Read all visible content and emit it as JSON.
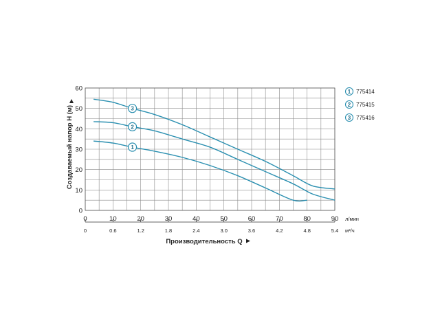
{
  "chart_data": {
    "type": "line",
    "title": "",
    "ylabel": "Создаваемый напор H (м)",
    "xlabel": "Производительность Q",
    "ylim": [
      0,
      60
    ],
    "xlim": [
      0,
      90
    ],
    "y_ticks": [
      0,
      10,
      20,
      30,
      40,
      50,
      60
    ],
    "x_ticks_primary": [
      0,
      10,
      20,
      30,
      40,
      50,
      60,
      70,
      80,
      90
    ],
    "x_unit_primary": "л/мин",
    "x_ticks_secondary": [
      "0",
      "0.6",
      "1.2",
      "1.8",
      "2.4",
      "3.0",
      "3.6",
      "4.2",
      "4.8",
      "5.4"
    ],
    "x_unit_secondary": "м³/ч",
    "grid": true,
    "legend_position": "right",
    "series": [
      {
        "name": "775414",
        "marker": "1",
        "color": "#2a8fb0",
        "x": [
          3,
          10,
          17,
          25,
          35,
          45,
          55,
          65,
          75,
          80
        ],
        "y": [
          34,
          33,
          31,
          29,
          26,
          22,
          17,
          11,
          5,
          5
        ]
      },
      {
        "name": "775415",
        "marker": "2",
        "color": "#2a8fb0",
        "x": [
          3,
          10,
          17,
          25,
          35,
          45,
          55,
          65,
          75,
          82,
          90
        ],
        "y": [
          43.5,
          43,
          41,
          39,
          35,
          31,
          25,
          19,
          13,
          8,
          5
        ]
      },
      {
        "name": "775416",
        "marker": "3",
        "color": "#2a8fb0",
        "x": [
          3,
          10,
          17,
          25,
          35,
          45,
          55,
          65,
          75,
          82,
          90
        ],
        "y": [
          54.5,
          53,
          50,
          47,
          42,
          36,
          30,
          24,
          17,
          12,
          10.5
        ]
      }
    ],
    "marker_x": [
      17,
      17,
      17
    ]
  }
}
